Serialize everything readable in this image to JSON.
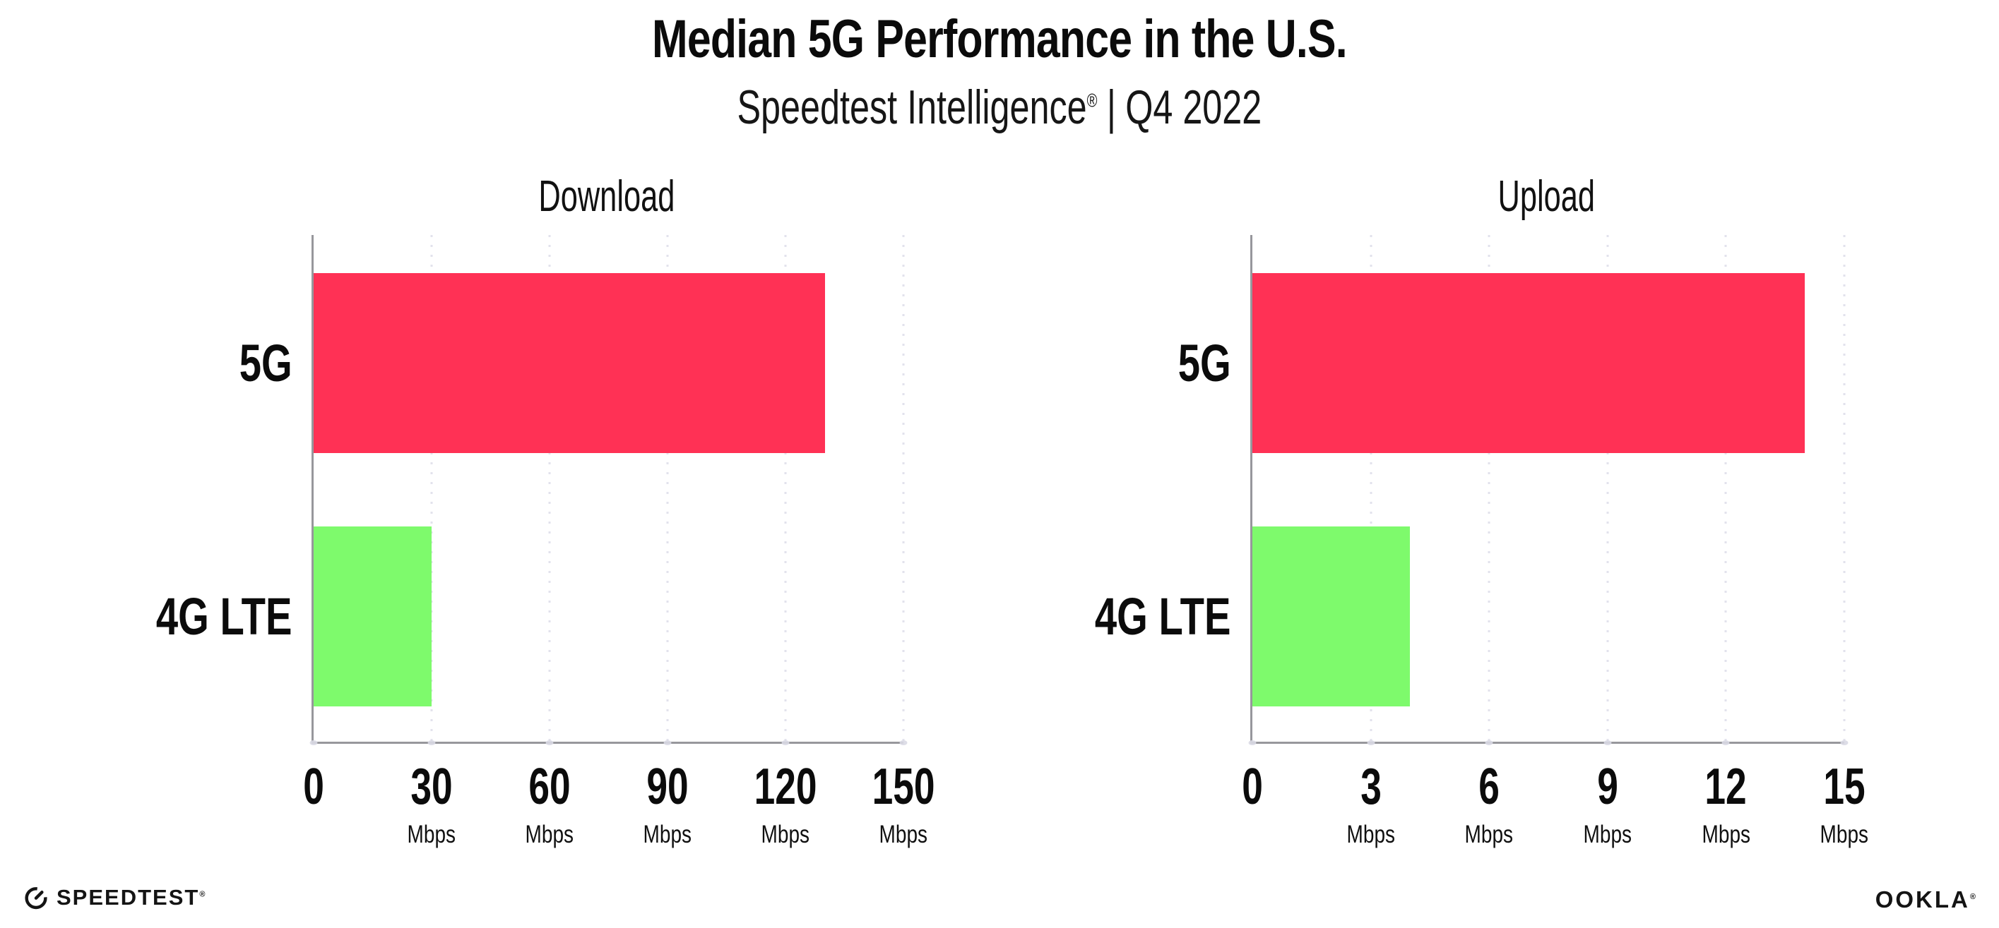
{
  "header": {
    "title": "Median 5G Performance in the U.S.",
    "subtitle_product": "Speedtest Intelligence",
    "subtitle_reg_mark": "®",
    "subtitle_separator": "|",
    "subtitle_period": "Q4 2022"
  },
  "chart_data": [
    {
      "type": "bar",
      "orientation": "horizontal",
      "title": "Download",
      "categories": [
        "5G",
        "4G LTE"
      ],
      "values": [
        130,
        30
      ],
      "unit": "Mbps",
      "xlim": [
        0,
        150
      ],
      "xticks": [
        0,
        30,
        60,
        90,
        120,
        150
      ],
      "bar_colors": [
        "#FF3155",
        "#7EFA6C"
      ],
      "grid": "dotted-vertical-at-ticks",
      "legend": "none"
    },
    {
      "type": "bar",
      "orientation": "horizontal",
      "title": "Upload",
      "categories": [
        "5G",
        "4G LTE"
      ],
      "values": [
        14,
        4
      ],
      "unit": "Mbps",
      "xlim": [
        0,
        15
      ],
      "xticks": [
        0,
        3,
        6,
        9,
        12,
        15
      ],
      "bar_colors": [
        "#FF3155",
        "#7EFA6C"
      ],
      "grid": "dotted-vertical-at-ticks",
      "legend": "none"
    }
  ],
  "footer": {
    "speedtest_logo_text": "SPEEDTEST",
    "speedtest_mark": "®",
    "ookla_logo_text": "OOKLA",
    "ookla_mark": "®"
  },
  "colors": {
    "bar_5g": "#FF3155",
    "bar_4g_lte": "#7EFA6C",
    "axis": "#97979C",
    "gridline": "#E2E2EC",
    "text": "#0B0B0B"
  }
}
